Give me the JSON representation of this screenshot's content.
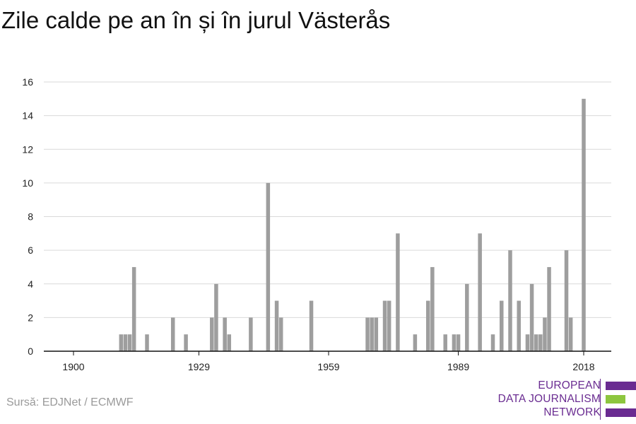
{
  "title": "Zile calde pe an în și în jurul Västerås",
  "source": "Sursă: EDJNet / ECMWF",
  "logo": {
    "lines": [
      "EUROPEAN",
      "DATA JOURNALISM",
      "NETWORK"
    ],
    "colors": {
      "purple": "#6a2c91",
      "green": "#8dc63f"
    }
  },
  "colors": {
    "bar": "#9e9e9e",
    "grid": "#d9d9d9",
    "axis": "#111111"
  },
  "chart_data": {
    "type": "bar",
    "title": "Zile calde pe an în și în jurul Västerås",
    "xlabel": "",
    "ylabel": "",
    "ylim": [
      0,
      16
    ],
    "xlim": [
      1900,
      2018
    ],
    "yticks": [
      0,
      2,
      4,
      6,
      8,
      10,
      12,
      14,
      16
    ],
    "xticks": [
      1900,
      1929,
      1959,
      1989,
      2018
    ],
    "grid": true,
    "series": [
      {
        "points": [
          [
            1911,
            1
          ],
          [
            1912,
            1
          ],
          [
            1913,
            1
          ],
          [
            1914,
            5
          ],
          [
            1917,
            1
          ],
          [
            1923,
            2
          ],
          [
            1926,
            1
          ],
          [
            1932,
            2
          ],
          [
            1933,
            4
          ],
          [
            1935,
            2
          ],
          [
            1936,
            1
          ],
          [
            1941,
            2
          ],
          [
            1945,
            10
          ],
          [
            1947,
            3
          ],
          [
            1948,
            2
          ],
          [
            1955,
            3
          ],
          [
            1968,
            2
          ],
          [
            1969,
            2
          ],
          [
            1970,
            2
          ],
          [
            1972,
            3
          ],
          [
            1973,
            3
          ],
          [
            1975,
            7
          ],
          [
            1979,
            1
          ],
          [
            1982,
            3
          ],
          [
            1983,
            5
          ],
          [
            1986,
            1
          ],
          [
            1988,
            1
          ],
          [
            1989,
            1
          ],
          [
            1991,
            4
          ],
          [
            1994,
            7
          ],
          [
            1997,
            1
          ],
          [
            1999,
            3
          ],
          [
            2001,
            6
          ],
          [
            2003,
            3
          ],
          [
            2005,
            1
          ],
          [
            2006,
            4
          ],
          [
            2007,
            1
          ],
          [
            2008,
            1
          ],
          [
            2009,
            2
          ],
          [
            2010,
            5
          ],
          [
            2014,
            6
          ],
          [
            2015,
            2
          ],
          [
            2018,
            15
          ]
        ]
      }
    ]
  }
}
